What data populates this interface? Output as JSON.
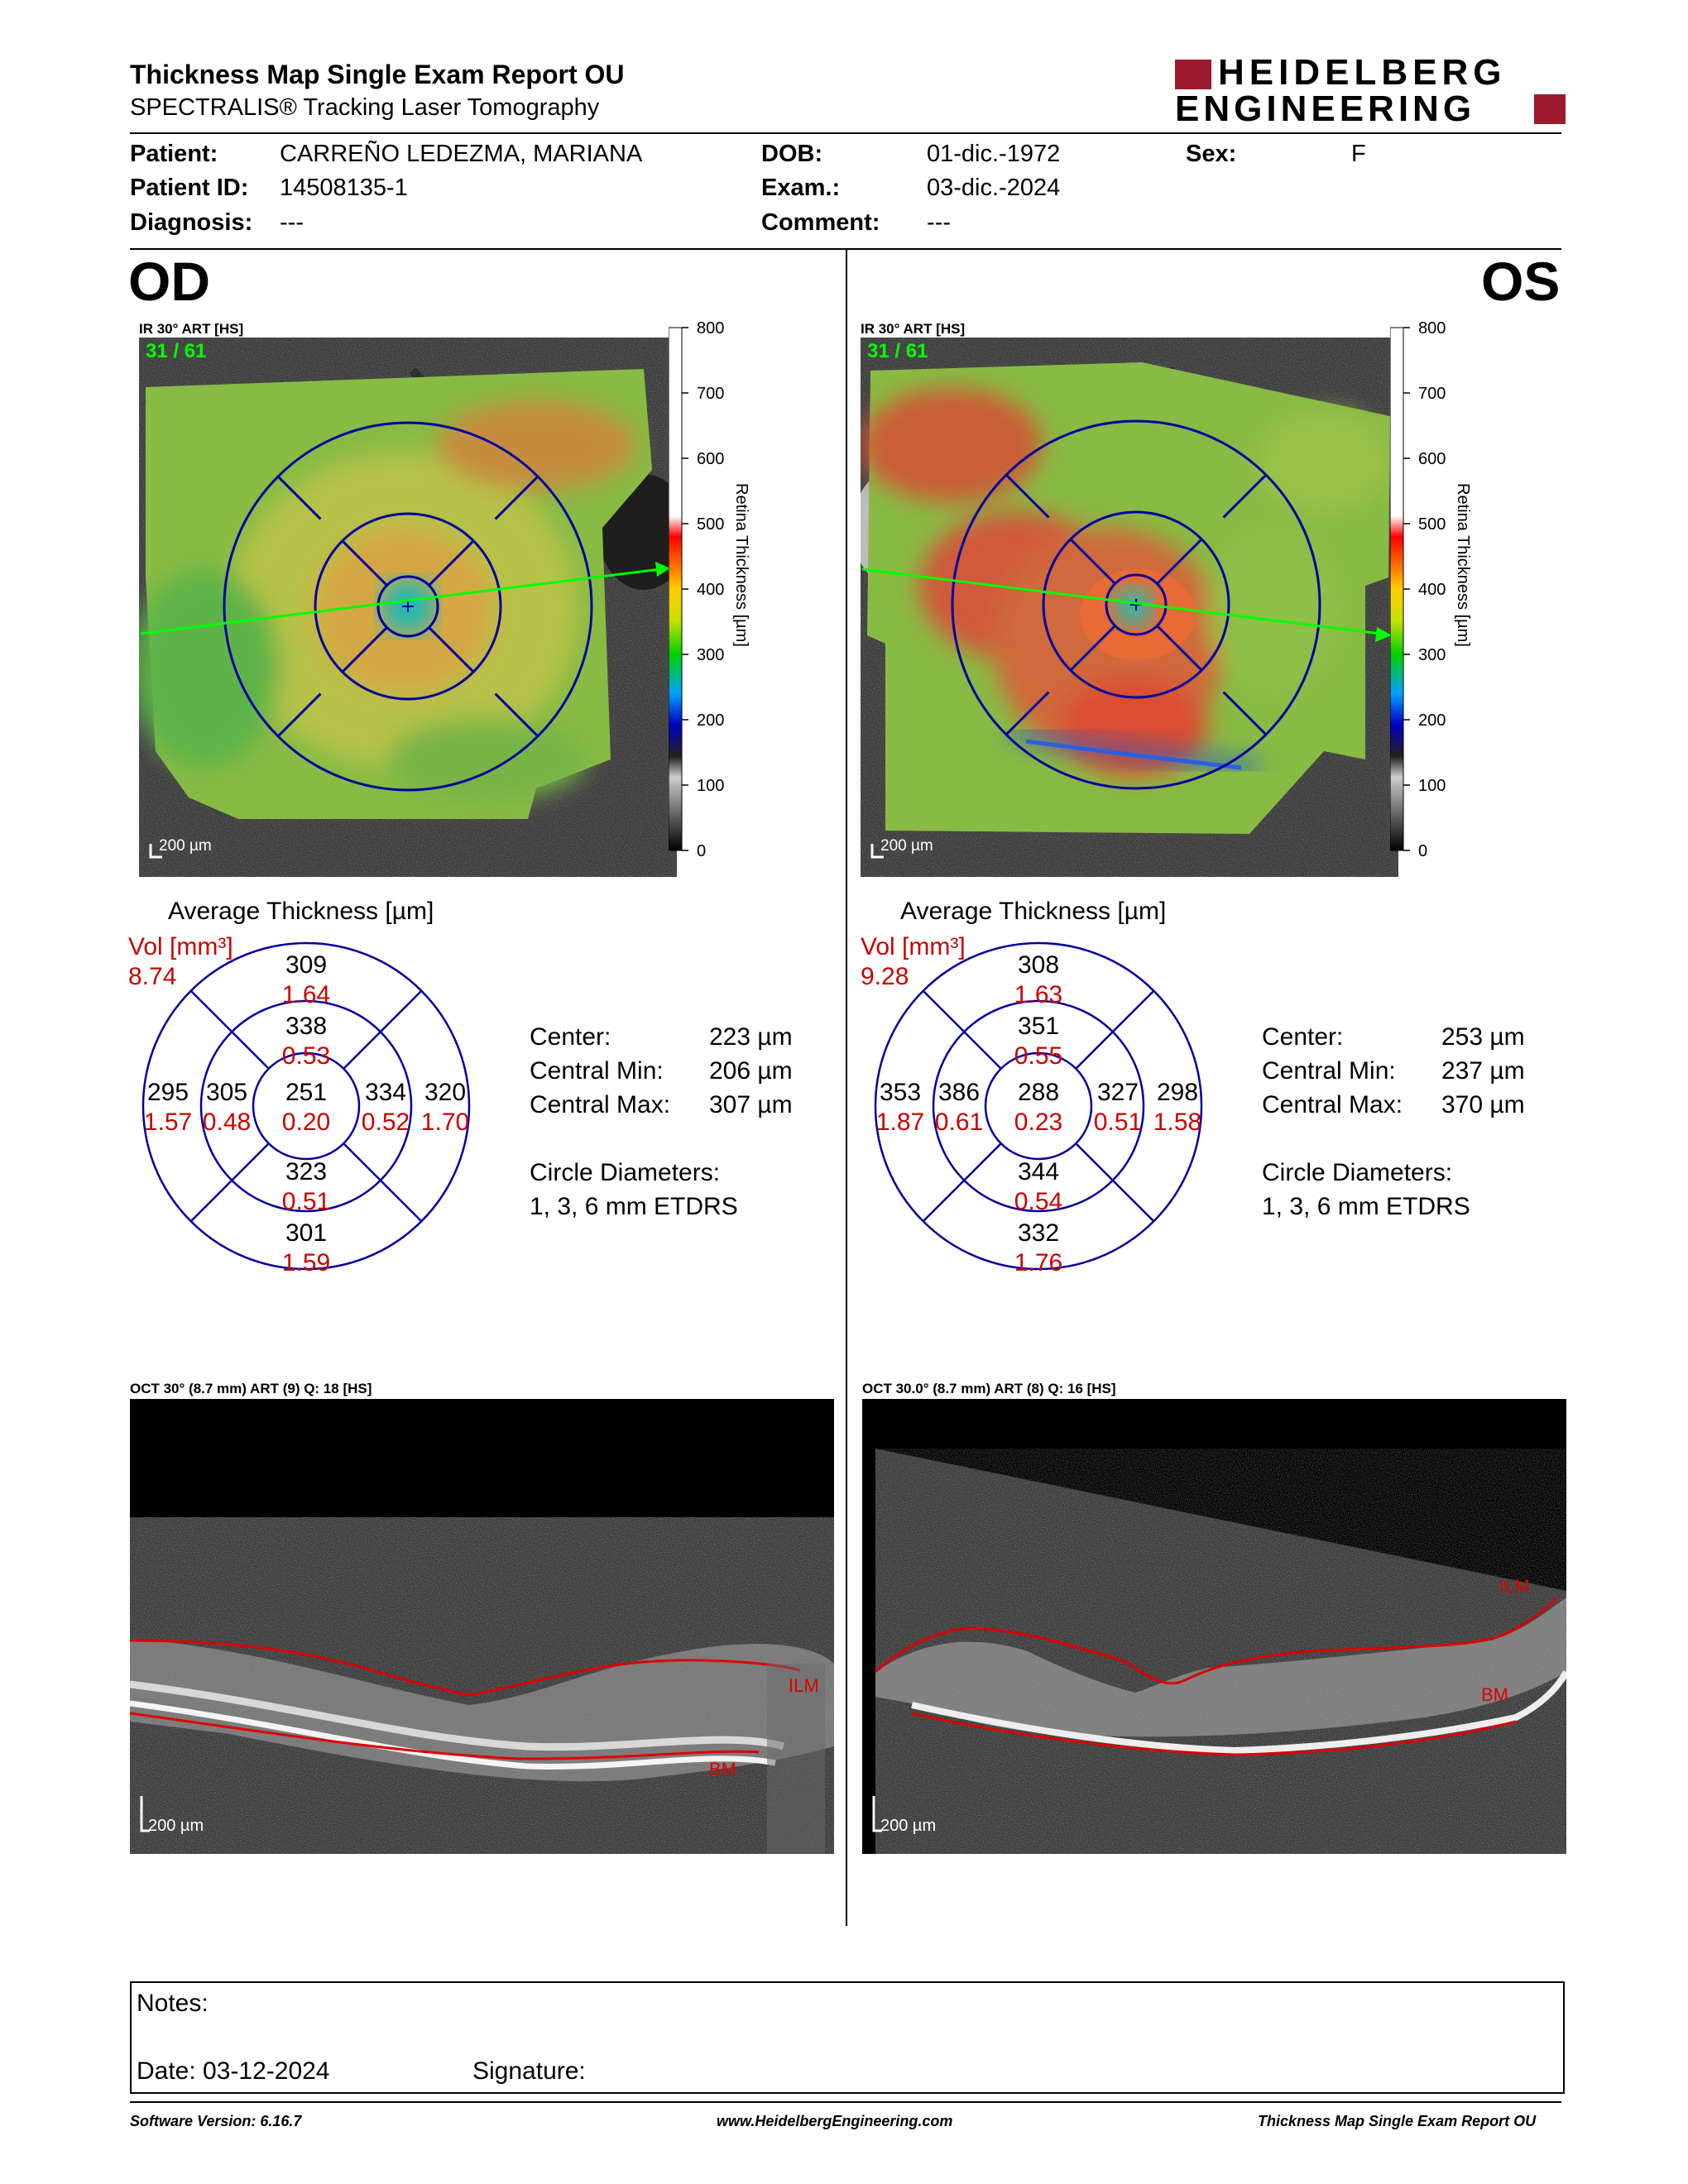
{
  "header": {
    "title": "Thickness Map Single Exam Report OU",
    "subtitle": "SPECTRALIS® Tracking Laser Tomography",
    "logo_line1": "HEIDELBERG",
    "logo_line2": "ENGINEERING"
  },
  "patient": {
    "patient_label": "Patient:",
    "patient_value": "CARREÑO LEDEZMA, MARIANA",
    "id_label": "Patient ID:",
    "id_value": "14508135-1",
    "diagnosis_label": "Diagnosis:",
    "diagnosis_value": "---",
    "dob_label": "DOB:",
    "dob_value": "01-dic.-1972",
    "exam_label": "Exam.:",
    "exam_value": "03-dic.-2024",
    "comment_label": "Comment:",
    "comment_value": "---",
    "sex_label": "Sex:",
    "sex_value": "F"
  },
  "colorbar": {
    "ticks": [
      "800",
      "700",
      "600",
      "500",
      "400",
      "300",
      "200",
      "100",
      "0"
    ],
    "label": "Retina Thickness [µm]"
  },
  "od": {
    "eye": "OD",
    "ir_label": "IR 30° ART [HS]",
    "scan_index": "31 / 61",
    "scale": "200 µm",
    "avg_title": "Average Thickness [µm]",
    "vol_label": "Vol [mm³]",
    "vol_value": "8.74",
    "grid": {
      "outer_sup": "309",
      "outer_sup_vol": "1.64",
      "inner_sup": "338",
      "inner_sup_vol": "0.53",
      "outer_left": "295",
      "outer_left_vol": "1.57",
      "inner_left": "305",
      "inner_left_vol": "0.48",
      "center": "251",
      "center_vol": "0.20",
      "inner_right": "334",
      "inner_right_vol": "0.52",
      "outer_right": "320",
      "outer_right_vol": "1.70",
      "inner_inf": "323",
      "inner_inf_vol": "0.51",
      "outer_inf": "301",
      "outer_inf_vol": "1.59"
    },
    "stats": {
      "center_label": "Center:",
      "center_value": "223 µm",
      "min_label": "Central Min:",
      "min_value": "206 µm",
      "max_label": "Central Max:",
      "max_value": "307 µm",
      "circle_label": "Circle Diameters:",
      "circle_value": "1, 3, 6 mm ETDRS"
    },
    "oct_label": "OCT 30° (8.7 mm) ART (9) Q: 18 [HS]",
    "ilm": "ILM",
    "bm": "BM",
    "oct_scale": "200 µm"
  },
  "os": {
    "eye": "OS",
    "ir_label": "IR 30° ART [HS]",
    "scan_index": "31 / 61",
    "scale": "200 µm",
    "avg_title": "Average Thickness [µm]",
    "vol_label": "Vol [mm³]",
    "vol_value": "9.28",
    "grid": {
      "outer_sup": "308",
      "outer_sup_vol": "1.63",
      "inner_sup": "351",
      "inner_sup_vol": "0.55",
      "outer_left": "353",
      "outer_left_vol": "1.87",
      "inner_left": "386",
      "inner_left_vol": "0.61",
      "center": "288",
      "center_vol": "0.23",
      "inner_right": "327",
      "inner_right_vol": "0.51",
      "outer_right": "298",
      "outer_right_vol": "1.58",
      "inner_inf": "344",
      "inner_inf_vol": "0.54",
      "outer_inf": "332",
      "outer_inf_vol": "1.76"
    },
    "stats": {
      "center_label": "Center:",
      "center_value": "253 µm",
      "min_label": "Central Min:",
      "min_value": "237 µm",
      "max_label": "Central Max:",
      "max_value": "370 µm",
      "circle_label": "Circle Diameters:",
      "circle_value": "1, 3, 6 mm ETDRS"
    },
    "oct_label": "OCT 30.0° (8.7 mm) ART (8) Q: 16 [HS]",
    "ilm": "ILM",
    "bm": "BM",
    "oct_scale": "200 µm"
  },
  "notes": {
    "notes_label": "Notes:",
    "date_label": "Date: 03-12-2024",
    "signature_label": "Signature:"
  },
  "footer": {
    "software": "Software Version: 6.16.7",
    "website": "www.HeidelbergEngineering.com",
    "report": "Thickness Map Single Exam Report OU"
  },
  "colors": {
    "logo_red": "#9b1b2a",
    "grid_blue": "#0000a0",
    "volume_red": "#cc0000",
    "scan_line_green": "#00ff00",
    "segmentation_red": "#e00000"
  }
}
